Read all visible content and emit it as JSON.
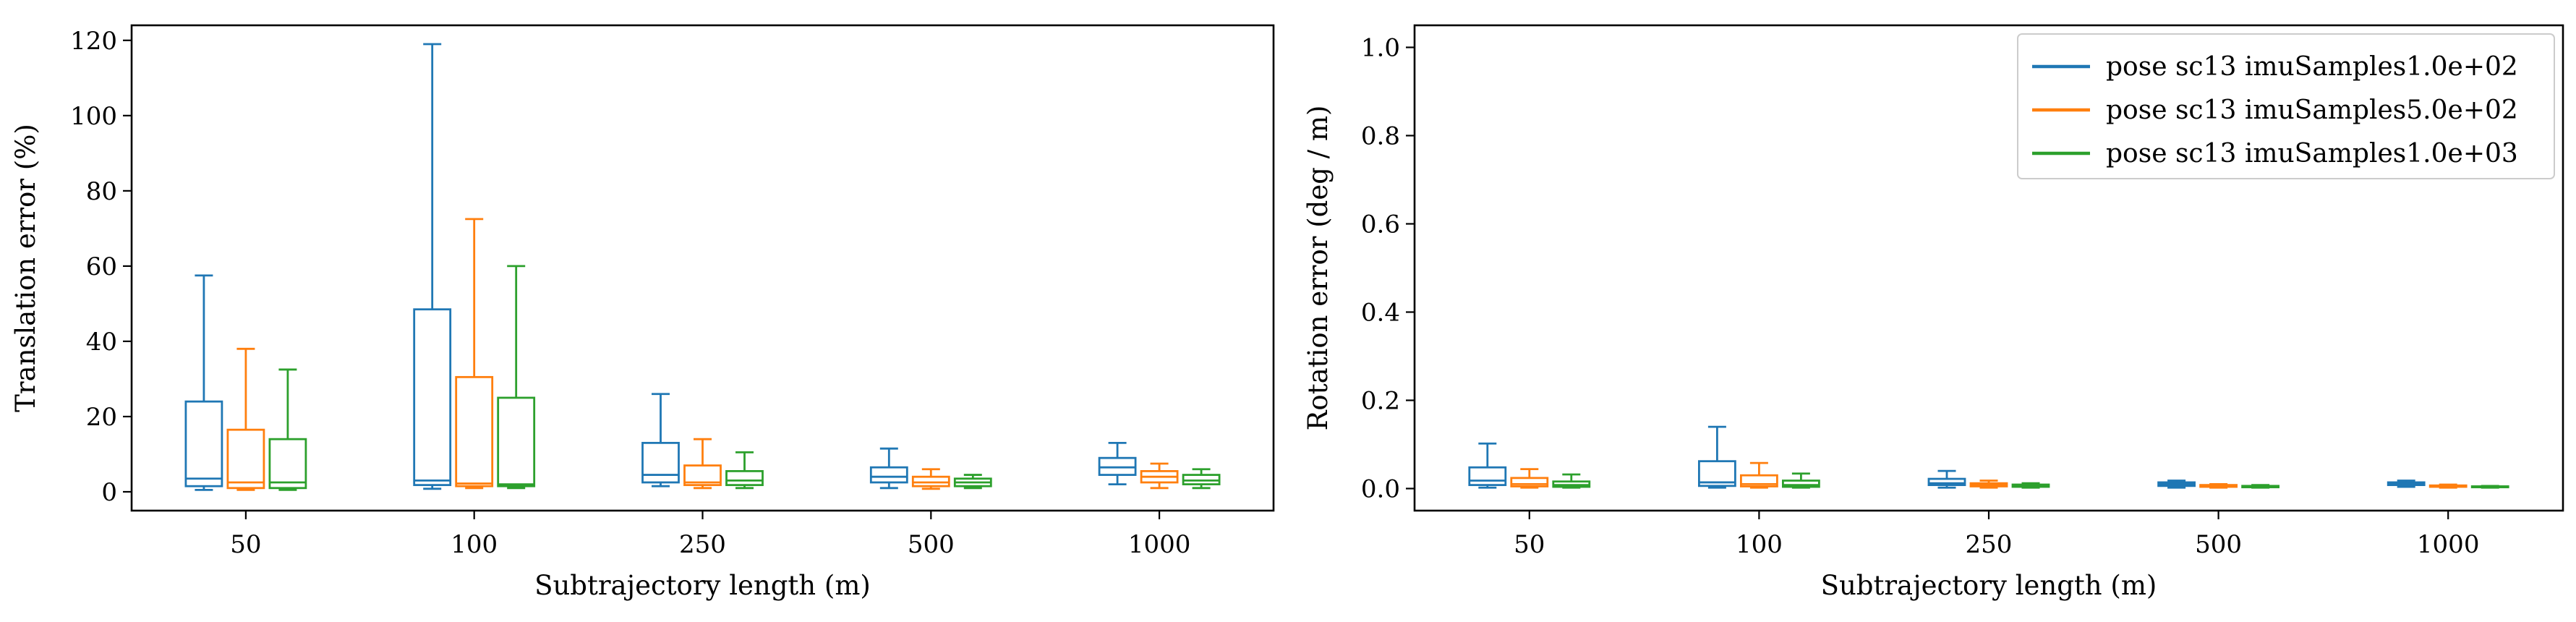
{
  "chart_data": [
    {
      "type": "box",
      "xlabel": "Subtrajectory length (m)",
      "ylabel": "Translation error (%)",
      "categories": [
        "50",
        "100",
        "250",
        "500",
        "1000"
      ],
      "ylim": [
        -5,
        124
      ],
      "yticks": [
        0,
        20,
        40,
        60,
        80,
        100,
        120
      ],
      "grid": false,
      "series": [
        {
          "name": "pose sc13 imuSamples1.0e+02",
          "color": "#1f77b4",
          "boxes": [
            {
              "whislo": 0.5,
              "q1": 1.5,
              "med": 3.5,
              "q3": 24,
              "whishi": 57.5
            },
            {
              "whislo": 0.8,
              "q1": 1.8,
              "med": 3.0,
              "q3": 48.5,
              "whishi": 119
            },
            {
              "whislo": 1.5,
              "q1": 2.5,
              "med": 4.5,
              "q3": 13,
              "whishi": 26
            },
            {
              "whislo": 1.0,
              "q1": 2.5,
              "med": 4.0,
              "q3": 6.5,
              "whishi": 11.5
            },
            {
              "whislo": 2.0,
              "q1": 4.5,
              "med": 6.5,
              "q3": 9.0,
              "whishi": 13
            }
          ]
        },
        {
          "name": "pose sc13 imuSamples5.0e+02",
          "color": "#ff7f0e",
          "boxes": [
            {
              "whislo": 0.5,
              "q1": 1.0,
              "med": 2.5,
              "q3": 16.5,
              "whishi": 38
            },
            {
              "whislo": 1.0,
              "q1": 1.5,
              "med": 2.2,
              "q3": 30.5,
              "whishi": 72.5
            },
            {
              "whislo": 1.0,
              "q1": 1.8,
              "med": 2.5,
              "q3": 7.0,
              "whishi": 14
            },
            {
              "whislo": 0.8,
              "q1": 1.5,
              "med": 2.5,
              "q3": 4.0,
              "whishi": 6.0
            },
            {
              "whislo": 1.0,
              "q1": 2.5,
              "med": 4.0,
              "q3": 5.5,
              "whishi": 7.5
            }
          ]
        },
        {
          "name": "pose sc13 imuSamples1.0e+03",
          "color": "#2ca02c",
          "boxes": [
            {
              "whislo": 0.5,
              "q1": 1.0,
              "med": 2.5,
              "q3": 14,
              "whishi": 32.5
            },
            {
              "whislo": 1.0,
              "q1": 1.5,
              "med": 2.0,
              "q3": 25,
              "whishi": 60
            },
            {
              "whislo": 1.0,
              "q1": 1.8,
              "med": 3.0,
              "q3": 5.5,
              "whishi": 10.5
            },
            {
              "whislo": 1.0,
              "q1": 1.5,
              "med": 2.5,
              "q3": 3.5,
              "whishi": 4.5
            },
            {
              "whislo": 1.0,
              "q1": 2.0,
              "med": 3.0,
              "q3": 4.5,
              "whishi": 6.0
            }
          ]
        }
      ]
    },
    {
      "type": "box",
      "xlabel": "Subtrajectory length (m)",
      "ylabel": "Rotation error (deg / m)",
      "categories": [
        "50",
        "100",
        "250",
        "500",
        "1000"
      ],
      "ylim": [
        -0.05,
        1.05
      ],
      "yticks": [
        0.0,
        0.2,
        0.4,
        0.6,
        0.8,
        1.0
      ],
      "grid": false,
      "legend_position": "top-right",
      "series": [
        {
          "name": "pose sc13 imuSamples1.0e+02",
          "color": "#1f77b4",
          "boxes": [
            {
              "whislo": 0.002,
              "q1": 0.008,
              "med": 0.018,
              "q3": 0.048,
              "whishi": 0.102
            },
            {
              "whislo": 0.002,
              "q1": 0.006,
              "med": 0.014,
              "q3": 0.062,
              "whishi": 0.14
            },
            {
              "whislo": 0.002,
              "q1": 0.008,
              "med": 0.012,
              "q3": 0.022,
              "whishi": 0.04
            },
            {
              "whislo": 0.002,
              "q1": 0.006,
              "med": 0.01,
              "q3": 0.014,
              "whishi": 0.018
            },
            {
              "whislo": 0.004,
              "q1": 0.008,
              "med": 0.011,
              "q3": 0.014,
              "whishi": 0.018
            }
          ]
        },
        {
          "name": "pose sc13 imuSamples5.0e+02",
          "color": "#ff7f0e",
          "boxes": [
            {
              "whislo": 0.002,
              "q1": 0.005,
              "med": 0.01,
              "q3": 0.024,
              "whishi": 0.044
            },
            {
              "whislo": 0.002,
              "q1": 0.005,
              "med": 0.01,
              "q3": 0.03,
              "whishi": 0.058
            },
            {
              "whislo": 0.002,
              "q1": 0.005,
              "med": 0.008,
              "q3": 0.012,
              "whishi": 0.018
            },
            {
              "whislo": 0.002,
              "q1": 0.004,
              "med": 0.006,
              "q3": 0.008,
              "whishi": 0.01
            },
            {
              "whislo": 0.002,
              "q1": 0.004,
              "med": 0.005,
              "q3": 0.007,
              "whishi": 0.009
            }
          ]
        },
        {
          "name": "pose sc13 imuSamples1.0e+03",
          "color": "#2ca02c",
          "boxes": [
            {
              "whislo": 0.002,
              "q1": 0.004,
              "med": 0.008,
              "q3": 0.016,
              "whishi": 0.032
            },
            {
              "whislo": 0.002,
              "q1": 0.004,
              "med": 0.008,
              "q3": 0.018,
              "whishi": 0.034
            },
            {
              "whislo": 0.002,
              "q1": 0.004,
              "med": 0.006,
              "q3": 0.009,
              "whishi": 0.012
            },
            {
              "whislo": 0.002,
              "q1": 0.003,
              "med": 0.005,
              "q3": 0.006,
              "whishi": 0.008
            },
            {
              "whislo": 0.002,
              "q1": 0.003,
              "med": 0.004,
              "q3": 0.005,
              "whishi": 0.006
            }
          ]
        }
      ]
    }
  ]
}
